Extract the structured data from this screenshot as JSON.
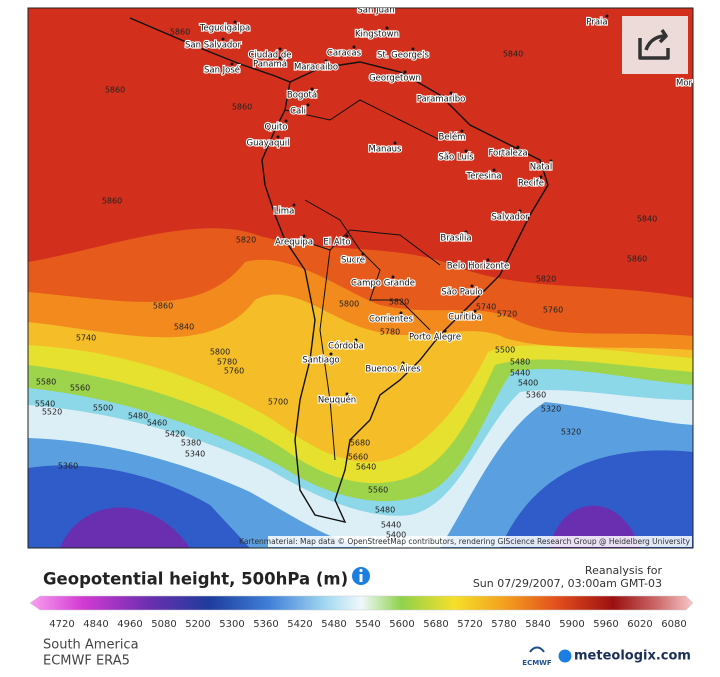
{
  "map": {
    "cities": [
      "San Juan",
      "Tegucigalpa",
      "San Salvador",
      "Ciudad de",
      "Panamá",
      "San José",
      "Caracas",
      "Maracaibo",
      "Kingstown",
      "St. George's",
      "Georgetown",
      "Paramaribo",
      "Bogotá",
      "Cali",
      "Quito",
      "Guayaquil",
      "Manaus",
      "Belém",
      "São Luís",
      "Fortaleza",
      "Natal",
      "Teresina",
      "Recife",
      "Salvador",
      "Lima",
      "Arequipa",
      "El Alto",
      "Brasília",
      "Sucre",
      "Belo Horizonte",
      "Campo Grande",
      "São Paulo",
      "Curitiba",
      "Corrientes",
      "Córdoba",
      "Porto Alegre",
      "Santiago",
      "Buenos Aires",
      "Neuquén",
      "Praia",
      "Mor"
    ],
    "contour_labels": [
      5860,
      5840,
      5860,
      5860,
      5860,
      5840,
      5820,
      5860,
      5820,
      5860,
      5840,
      5740,
      5800,
      5780,
      5760,
      5580,
      5560,
      5540,
      5520,
      5500,
      5480,
      5460,
      5420,
      5380,
      5340,
      5360,
      5700,
      5500,
      5480,
      5440,
      5400,
      5360,
      5320,
      5680,
      5660,
      5640,
      5560,
      5480,
      5440,
      5400,
      5320,
      5800,
      5820,
      5780,
      5740,
      5720,
      5760
    ],
    "attribution": "Kartenmaterial: Map data © OpenStreetMap contributors, rendering GIScience Research Group @ Heidelberg University"
  },
  "legend": {
    "title": "Geopotential height, 500hPa (m)",
    "ticks": [
      4720,
      4840,
      4960,
      5080,
      5200,
      5300,
      5360,
      5420,
      5480,
      5540,
      5600,
      5680,
      5720,
      5780,
      5840,
      5900,
      5960,
      6020,
      6080
    ]
  },
  "footer": {
    "reanalysis": "Reanalysis for",
    "date": "Sun 07/29/2007, 03:00am GMT-03",
    "region": "South America",
    "model": "ECMWF ERA5",
    "ecmwf_logo": "ECMWF",
    "brand": "meteologix.com"
  }
}
